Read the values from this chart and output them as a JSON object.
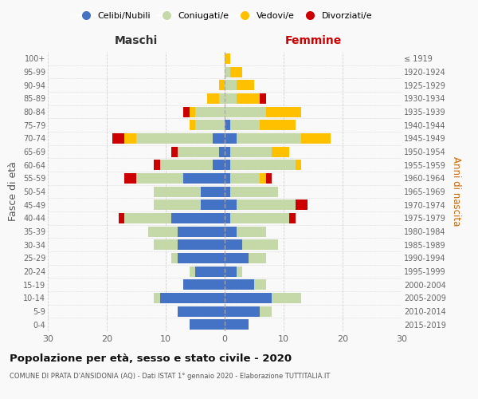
{
  "age_groups": [
    "0-4",
    "5-9",
    "10-14",
    "15-19",
    "20-24",
    "25-29",
    "30-34",
    "35-39",
    "40-44",
    "45-49",
    "50-54",
    "55-59",
    "60-64",
    "65-69",
    "70-74",
    "75-79",
    "80-84",
    "85-89",
    "90-94",
    "95-99",
    "100+"
  ],
  "birth_years": [
    "2015-2019",
    "2010-2014",
    "2005-2009",
    "2000-2004",
    "1995-1999",
    "1990-1994",
    "1985-1989",
    "1980-1984",
    "1975-1979",
    "1970-1974",
    "1965-1969",
    "1960-1964",
    "1955-1959",
    "1950-1954",
    "1945-1949",
    "1940-1944",
    "1935-1939",
    "1930-1934",
    "1925-1929",
    "1920-1924",
    "≤ 1919"
  ],
  "male": {
    "celibi": [
      6,
      8,
      11,
      7,
      5,
      8,
      8,
      8,
      9,
      4,
      4,
      7,
      2,
      1,
      2,
      0,
      0,
      0,
      0,
      0,
      0
    ],
    "coniugati": [
      0,
      0,
      1,
      0,
      1,
      1,
      4,
      5,
      8,
      8,
      8,
      8,
      9,
      7,
      13,
      5,
      5,
      1,
      0,
      0,
      0
    ],
    "vedovi": [
      0,
      0,
      0,
      0,
      0,
      0,
      0,
      0,
      0,
      0,
      0,
      0,
      0,
      0,
      2,
      1,
      1,
      2,
      1,
      0,
      0
    ],
    "divorziati": [
      0,
      0,
      0,
      0,
      0,
      0,
      0,
      0,
      1,
      0,
      0,
      2,
      1,
      1,
      2,
      0,
      1,
      0,
      0,
      0,
      0
    ]
  },
  "female": {
    "nubili": [
      4,
      6,
      8,
      5,
      2,
      4,
      3,
      2,
      1,
      2,
      1,
      1,
      1,
      1,
      2,
      1,
      0,
      0,
      0,
      0,
      0
    ],
    "coniugate": [
      0,
      2,
      5,
      2,
      1,
      3,
      6,
      5,
      10,
      10,
      8,
      5,
      11,
      7,
      11,
      5,
      7,
      2,
      2,
      1,
      0
    ],
    "vedove": [
      0,
      0,
      0,
      0,
      0,
      0,
      0,
      0,
      0,
      0,
      0,
      1,
      1,
      3,
      5,
      6,
      6,
      4,
      3,
      2,
      1
    ],
    "divorziate": [
      0,
      0,
      0,
      0,
      0,
      0,
      0,
      0,
      1,
      2,
      0,
      1,
      0,
      0,
      0,
      0,
      0,
      1,
      0,
      0,
      0
    ]
  },
  "colors": {
    "celibi": "#4472c4",
    "coniugati": "#c5d9a8",
    "vedovi": "#ffc000",
    "divorziati": "#cc0000"
  },
  "xlim": 30,
  "title": "Popolazione per età, sesso e stato civile - 2020",
  "subtitle": "COMUNE DI PRATA D'ANSIDONIA (AQ) - Dati ISTAT 1° gennaio 2020 - Elaborazione TUTTITALIA.IT",
  "ylabel_left": "Fasce di età",
  "ylabel_right": "Anni di nascita",
  "legend_labels": [
    "Celibi/Nubili",
    "Coniugati/e",
    "Vedovi/e",
    "Divorziati/e"
  ],
  "maschi_label": "Maschi",
  "femmine_label": "Femmine",
  "bg_color": "#f9f9f9",
  "grid_color": "#cccccc"
}
